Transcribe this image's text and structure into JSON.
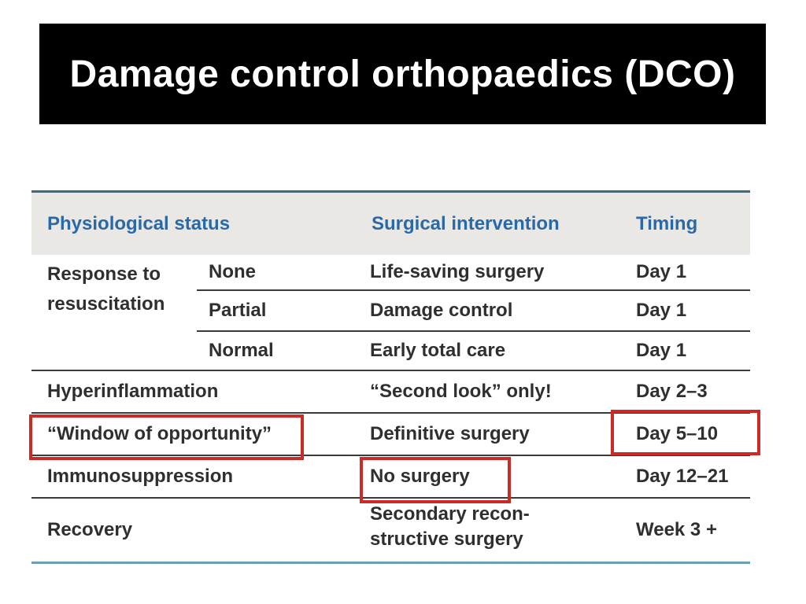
{
  "slide": {
    "title": "Damage control orthopaedics (DCO)"
  },
  "table": {
    "headers": {
      "status": "Physiological status",
      "intervention": "Surgical intervention",
      "timing": "Timing"
    },
    "group": {
      "status": "Response to\nresuscitation",
      "subrows": [
        {
          "level": "None",
          "intervention": "Life-saving surgery",
          "timing": "Day 1"
        },
        {
          "level": "Partial",
          "intervention": "Damage control",
          "timing": "Day 1"
        },
        {
          "level": "Normal",
          "intervention": "Early total care",
          "timing": "Day 1"
        }
      ]
    },
    "rows": [
      {
        "status": "Hyperinflammation",
        "intervention": "“Second look” only!",
        "timing": "Day 2–3"
      },
      {
        "status": "“Window of opportunity”",
        "intervention": "Definitive surgery",
        "timing": "Day 5–10"
      },
      {
        "status": "Immunosuppression",
        "intervention": "No surgery",
        "timing": "Day 12–21"
      },
      {
        "status": "Recovery",
        "intervention": "Secondary recon-\nstructive surgery",
        "timing": "Week 3 +"
      }
    ],
    "highlights": [
      "window-of-opportunity-status",
      "day-5-10-timing",
      "no-surgery-intervention"
    ],
    "colors": {
      "highlight_border": "#cb2b24",
      "header_text": "#2a69a8",
      "header_band": "#e9e8e4",
      "top_rule": "#4a6673",
      "bottom_rule": "#6d9fb5"
    }
  }
}
